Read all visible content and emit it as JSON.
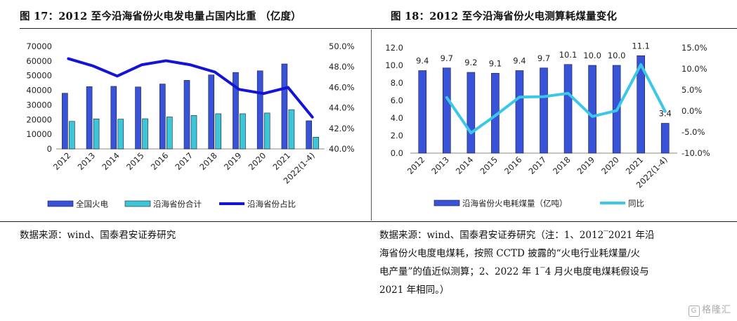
{
  "left": {
    "title": "图 17：2012 至今沿海省份火电发电量占国内比重 （亿度）",
    "source": "数据来源：wind、国泰君安证券研究",
    "chart_data": {
      "type": "bar",
      "title": "",
      "categories": [
        "2012",
        "2013",
        "2014",
        "2015",
        "2016",
        "2017",
        "2018",
        "2019",
        "2020",
        "2021",
        "2022(1-4)"
      ],
      "ylim": [
        0,
        70000
      ],
      "yticks": [
        "70000",
        "60000",
        "50000",
        "40000",
        "30000",
        "20000",
        "10000",
        "0"
      ],
      "y2lim": [
        40,
        50
      ],
      "y2ticks": [
        "50.0%",
        "48.0%",
        "46.0%",
        "44.0%",
        "42.0%",
        "40.0%"
      ],
      "series": [
        {
          "name": "全国火电",
          "type": "bar",
          "color": "#3853d8",
          "values": [
            38000,
            42500,
            42700,
            42300,
            44300,
            46800,
            50500,
            52200,
            53300,
            58000,
            19200
          ]
        },
        {
          "name": "沿海省份合计",
          "type": "bar",
          "color": "#3cc6d8",
          "values": [
            18800,
            20500,
            20300,
            20600,
            21800,
            22800,
            24000,
            24000,
            24500,
            26800,
            8000
          ]
        },
        {
          "name": "沿海省份占比",
          "type": "line",
          "axis": "secondary",
          "color": "#1414d8",
          "values": [
            48.8,
            48.1,
            47.1,
            48.2,
            48.6,
            48.2,
            47.5,
            45.8,
            45.4,
            46.0,
            43.1
          ]
        }
      ]
    }
  },
  "right": {
    "title": "图 18：2012 至今沿海省份火电测算耗煤量变化",
    "source_lines": [
      "数据来源：wind、国泰君安证券研究（注：1、2012‾2021 年沿",
      "海省份火电度电煤耗，按照 CCTD 披露的“火电行业耗煤量/火",
      "电产量”的值近似测算；2、2022 年 1‾4 月火电度电煤耗假设与",
      "2021 年相同。）"
    ],
    "chart_data": {
      "type": "bar",
      "title": "",
      "categories": [
        "2012",
        "2013",
        "2014",
        "2015",
        "2016",
        "2017",
        "2018",
        "2019",
        "2020",
        "2021",
        "2022(1-4)"
      ],
      "ylim": [
        0,
        12
      ],
      "yticks": [
        "12.0",
        "10.0",
        "8.0",
        "6.0",
        "4.0",
        "2.0",
        "0.0"
      ],
      "y2lim": [
        -10,
        15
      ],
      "y2ticks": [
        "15.0%",
        "10.0%",
        "5.0%",
        "0.0%",
        "-5.0%",
        "-10.0%"
      ],
      "data_labels": [
        "9.4",
        "9.7",
        "9.2",
        "9.1",
        "9.4",
        "9.7",
        "10.1",
        "10.0",
        "10.0",
        "11.1",
        "3.4"
      ],
      "series": [
        {
          "name": "沿海省份火电耗煤量（亿吨）",
          "type": "bar",
          "color": "#3853d8",
          "values": [
            9.4,
            9.7,
            9.2,
            9.1,
            9.4,
            9.7,
            10.1,
            10.0,
            10.0,
            11.1,
            3.4
          ]
        },
        {
          "name": "同比",
          "type": "line",
          "axis": "secondary",
          "color": "#3cc6e8",
          "values": [
            null,
            3.2,
            -5.2,
            -1.1,
            3.3,
            3.4,
            4.2,
            -1.3,
            0.1,
            11.0,
            -0.1
          ]
        }
      ]
    }
  },
  "watermark": "格隆汇",
  "watermark_mark": "G"
}
